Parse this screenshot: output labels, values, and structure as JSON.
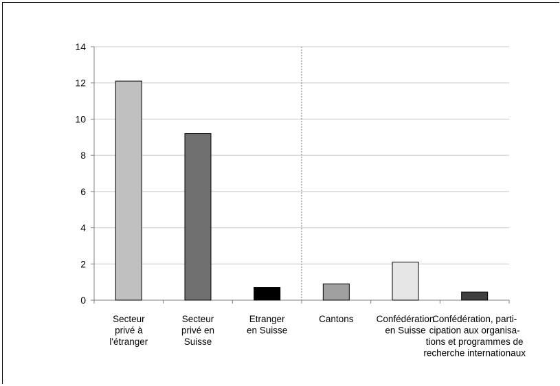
{
  "chart_data": {
    "type": "bar",
    "categories": [
      [
        "Secteur",
        "privé à",
        "l'étranger"
      ],
      [
        "Secteur",
        "privé en",
        "Suisse"
      ],
      [
        "Etranger",
        "en Suisse"
      ],
      [
        "Cantons"
      ],
      [
        "Confédération",
        "en Suisse"
      ],
      [
        "Confédération, parti-",
        "cipation aux organisa-",
        "tions et programmes de",
        "recherche internationaux"
      ]
    ],
    "values": [
      12.1,
      9.2,
      0.7,
      0.9,
      2.1,
      0.45
    ],
    "colors": [
      "#c0c0c0",
      "#707070",
      "#000000",
      "#a0a0a0",
      "#e6e6e6",
      "#404040"
    ],
    "ylim": [
      0,
      14
    ],
    "yticks": [
      0,
      2,
      4,
      6,
      8,
      10,
      12,
      14
    ],
    "grid": true,
    "separator_after_category": 3,
    "title": "",
    "xlabel": "",
    "ylabel": ""
  }
}
